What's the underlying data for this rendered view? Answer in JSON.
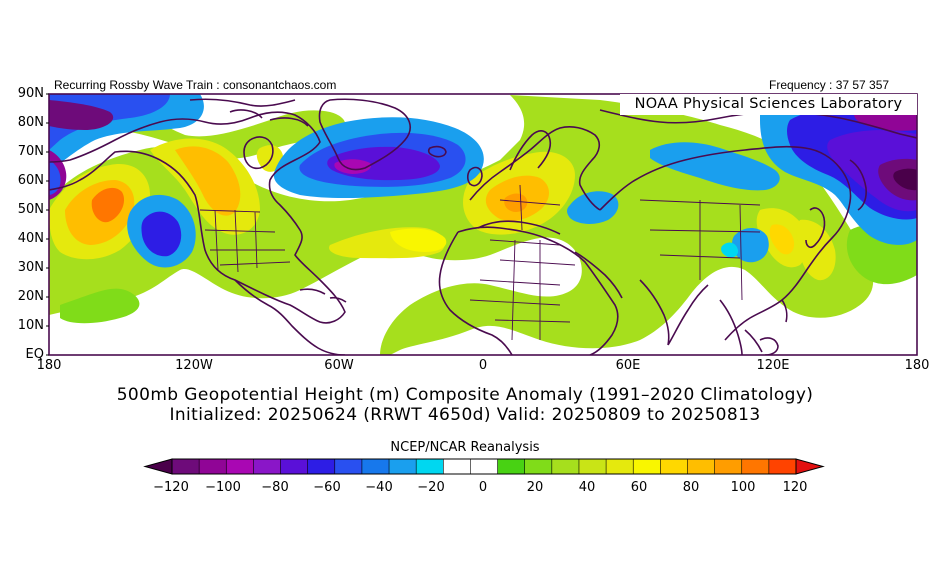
{
  "header": {
    "left": "Recurring Rossby Wave Train : consonantchaos.com",
    "right": "Frequency : 37 57 357",
    "lab": "NOAA Physical Sciences Laboratory"
  },
  "map": {
    "lat_labels": [
      "90N",
      "80N",
      "70N",
      "60N",
      "50N",
      "40N",
      "30N",
      "20N",
      "10N",
      "EQ"
    ],
    "lon_labels": [
      "180",
      "120W",
      "60W",
      "0",
      "60E",
      "120E",
      "180"
    ],
    "projection": "cylindrical equidistant",
    "extent": {
      "lon": [
        -180,
        180
      ],
      "lat": [
        0,
        90
      ]
    },
    "coastline_color": "#4a0b4f"
  },
  "title": {
    "line1": "500mb Geopotential Height (m) Composite Anomaly (1991–2020 Climatology)",
    "line2": "Initialized: 20250624 (RRWT 4650d) Valid: 20250809 to 20250813"
  },
  "source": "NCEP/NCAR Reanalysis",
  "colorbar": {
    "tick_labels": [
      "−120",
      "−100",
      "−80",
      "−60",
      "−40",
      "−20",
      "0",
      "20",
      "40",
      "60",
      "80",
      "100",
      "120"
    ],
    "colors": [
      "#4a004a",
      "#6e0b7a",
      "#900596",
      "#a907b3",
      "#8a16c8",
      "#5a10d8",
      "#2d1de5",
      "#2950f0",
      "#1778ec",
      "#1a9fee",
      "#00d7f0",
      "#ffffff",
      "#ffffff",
      "#48d213",
      "#80dc19",
      "#a6df1d",
      "#c9e416",
      "#e5e90d",
      "#f9f600",
      "#ffd800",
      "#ffbe00",
      "#ff9d00",
      "#ff7600",
      "#ff4300",
      "#e21010"
    ]
  },
  "anomaly_features": [
    {
      "label": "negative",
      "level": -80,
      "lon": 167,
      "lat": 60
    },
    {
      "label": "negative",
      "level": -60,
      "lon": -35,
      "lat": 65
    },
    {
      "label": "negative",
      "level": -60,
      "lon": -170,
      "lat": 83
    },
    {
      "label": "negative",
      "level": -60,
      "lon": -138,
      "lat": 40
    },
    {
      "label": "positive",
      "level": 60,
      "lon": -155,
      "lat": 55
    },
    {
      "label": "positive",
      "level": 40,
      "lon": 10,
      "lat": 50
    },
    {
      "label": "positive",
      "level": 40,
      "lon": -105,
      "lat": 62
    },
    {
      "label": "negative",
      "level": -20,
      "lon": 110,
      "lat": 40
    }
  ]
}
